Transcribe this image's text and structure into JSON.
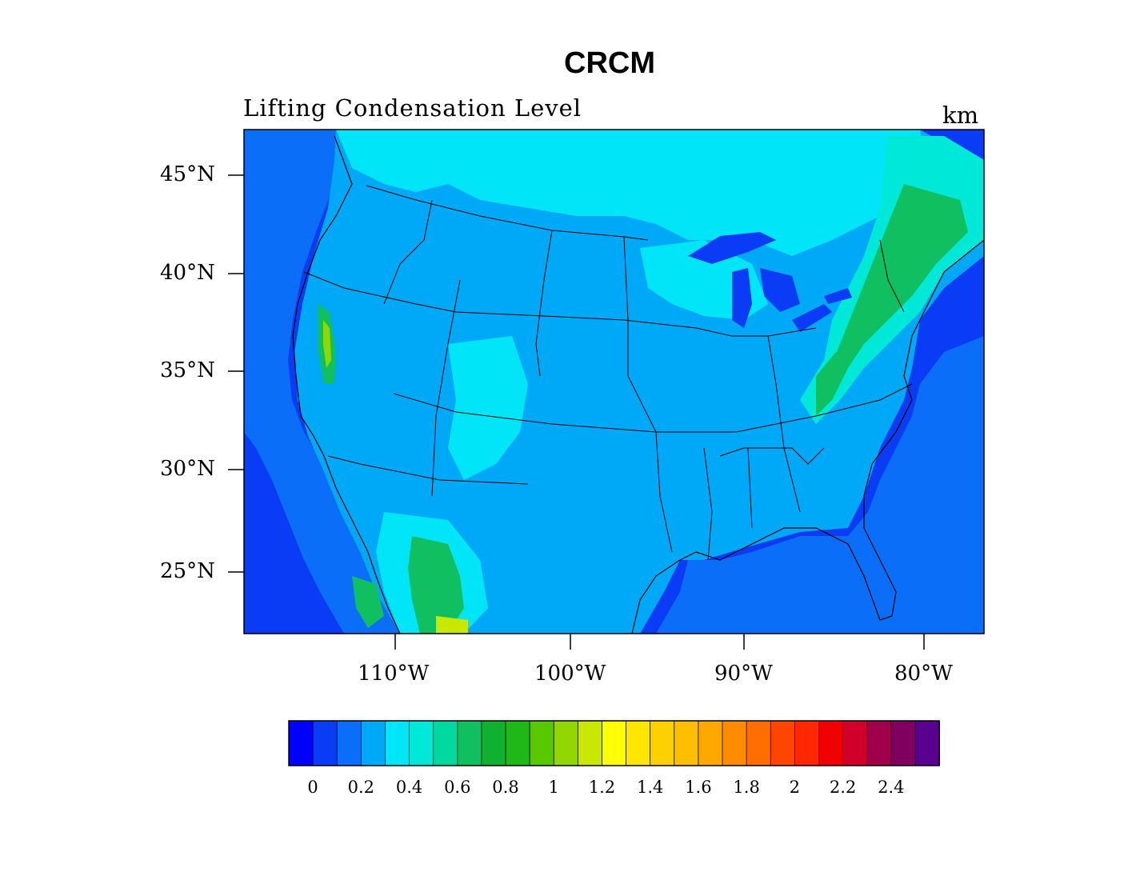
{
  "title": "CRCM",
  "subtitle": "Lifting Condensation Level",
  "units": "km",
  "y_axis": {
    "ticks": [
      "45°N",
      "40°N",
      "35°N",
      "30°N",
      "25°N"
    ]
  },
  "x_axis": {
    "ticks": [
      "110°W",
      "100°W",
      "90°W",
      "80°W"
    ]
  },
  "colorbar": {
    "labels": [
      "0",
      "0.2",
      "0.4",
      "0.6",
      "0.8",
      "1",
      "1.2",
      "1.4",
      "1.6",
      "1.8",
      "2",
      "2.2",
      "2.4"
    ],
    "colors": [
      "#0000ff",
      "#0a3cf5",
      "#0a6ef8",
      "#00a8f8",
      "#00e6f8",
      "#00e8d8",
      "#00d8a0",
      "#10c060",
      "#10b030",
      "#20b818",
      "#58c800",
      "#90d800",
      "#c8e800",
      "#ffff00",
      "#ffe600",
      "#ffd000",
      "#ffbe00",
      "#ffa800",
      "#ff8c00",
      "#ff6e00",
      "#ff4600",
      "#ff2800",
      "#f00000",
      "#d0002a",
      "#a0004a",
      "#800060",
      "#5a0090"
    ]
  },
  "legend_colors": {
    "ocean": "#0a3cf5",
    "low": "#0a6ef8",
    "mid": "#00a8f8",
    "high": "#00e6f8",
    "north": "#00e8d8",
    "green": "#10c060",
    "dark_green": "#10b030",
    "yellow_green": "#90d800",
    "yellow": "#c8e800"
  }
}
